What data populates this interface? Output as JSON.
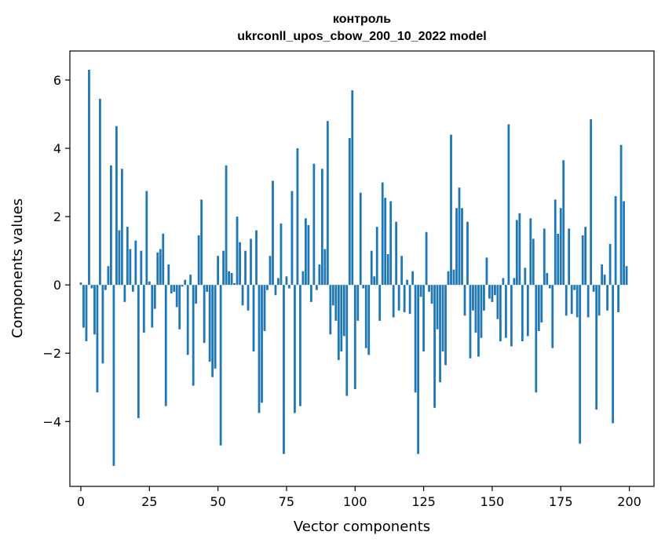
{
  "chart_data": {
    "type": "bar",
    "title": "контроль",
    "subtitle": "ukrconll_upos_cbow_200_10_2022 model",
    "xlabel": "Vector components",
    "ylabel": "Components values",
    "xlim": [
      -4,
      209
    ],
    "ylim": [
      -5.9,
      6.85
    ],
    "xticks": [
      0,
      25,
      50,
      75,
      100,
      125,
      150,
      175,
      200
    ],
    "yticks": [
      -4,
      -2,
      0,
      2,
      4,
      6
    ],
    "bar_color": "#1f77b4",
    "values": [
      0.07,
      -1.25,
      -1.65,
      6.3,
      -0.1,
      -1.45,
      -3.15,
      5.45,
      -2.3,
      -0.15,
      0.55,
      3.5,
      -5.3,
      4.65,
      1.6,
      3.4,
      -0.5,
      1.7,
      1.05,
      -0.2,
      1.3,
      -3.9,
      1.0,
      -1.4,
      2.75,
      0.1,
      -1.25,
      -0.7,
      0.95,
      1.05,
      1.5,
      -3.55,
      0.6,
      -0.25,
      -0.2,
      -0.65,
      -1.3,
      -0.05,
      0.15,
      -2.05,
      0.3,
      -2.95,
      -0.55,
      1.45,
      2.5,
      -1.7,
      -0.2,
      -2.25,
      -2.7,
      -2.45,
      0.85,
      -4.7,
      1.0,
      3.5,
      0.4,
      0.35,
      0.05,
      2.0,
      1.25,
      -0.6,
      1.0,
      -0.75,
      1.35,
      -1.95,
      1.6,
      -3.75,
      -3.45,
      -1.35,
      -0.15,
      0.85,
      3.05,
      -0.3,
      0.2,
      1.8,
      -4.95,
      0.25,
      -0.1,
      2.75,
      -3.75,
      4.0,
      -3.55,
      0.4,
      1.95,
      1.75,
      -0.5,
      3.55,
      -0.15,
      0.6,
      3.4,
      1.05,
      4.8,
      -1.45,
      -0.6,
      -1.05,
      -2.2,
      -1.95,
      -1.5,
      -3.25,
      4.3,
      5.7,
      -3.05,
      -1.05,
      2.7,
      -0.1,
      -1.85,
      -2.05,
      1.0,
      0.25,
      1.7,
      -1.05,
      3.0,
      2.55,
      0.9,
      2.45,
      -0.95,
      1.85,
      -0.75,
      0.85,
      -0.8,
      0.15,
      -0.85,
      0.4,
      -3.15,
      -4.95,
      -0.35,
      -1.95,
      1.55,
      -0.2,
      -0.55,
      -3.6,
      -1.3,
      -2.85,
      -1.95,
      -2.35,
      0.4,
      4.4,
      0.45,
      2.25,
      2.85,
      2.25,
      -0.9,
      1.85,
      -2.15,
      -0.75,
      -1.4,
      -2.1,
      -1.55,
      -0.75,
      0.8,
      -0.4,
      -0.5,
      -0.3,
      -1.0,
      -1.65,
      0.2,
      -1.55,
      4.7,
      -1.8,
      0.2,
      1.9,
      2.1,
      -1.65,
      0.5,
      -1.5,
      1.95,
      1.35,
      -3.15,
      -1.35,
      -1.1,
      1.65,
      0.35,
      -0.1,
      -1.85,
      2.5,
      1.5,
      2.25,
      3.65,
      -0.9,
      1.65,
      -0.85,
      -0.15,
      -0.95,
      -4.65,
      1.45,
      1.7,
      -0.95,
      4.85,
      -0.2,
      -3.65,
      -0.9,
      0.6,
      0.3,
      -0.75,
      1.2,
      -4.05,
      2.6,
      -0.8,
      4.1,
      2.45,
      0.55
    ]
  }
}
